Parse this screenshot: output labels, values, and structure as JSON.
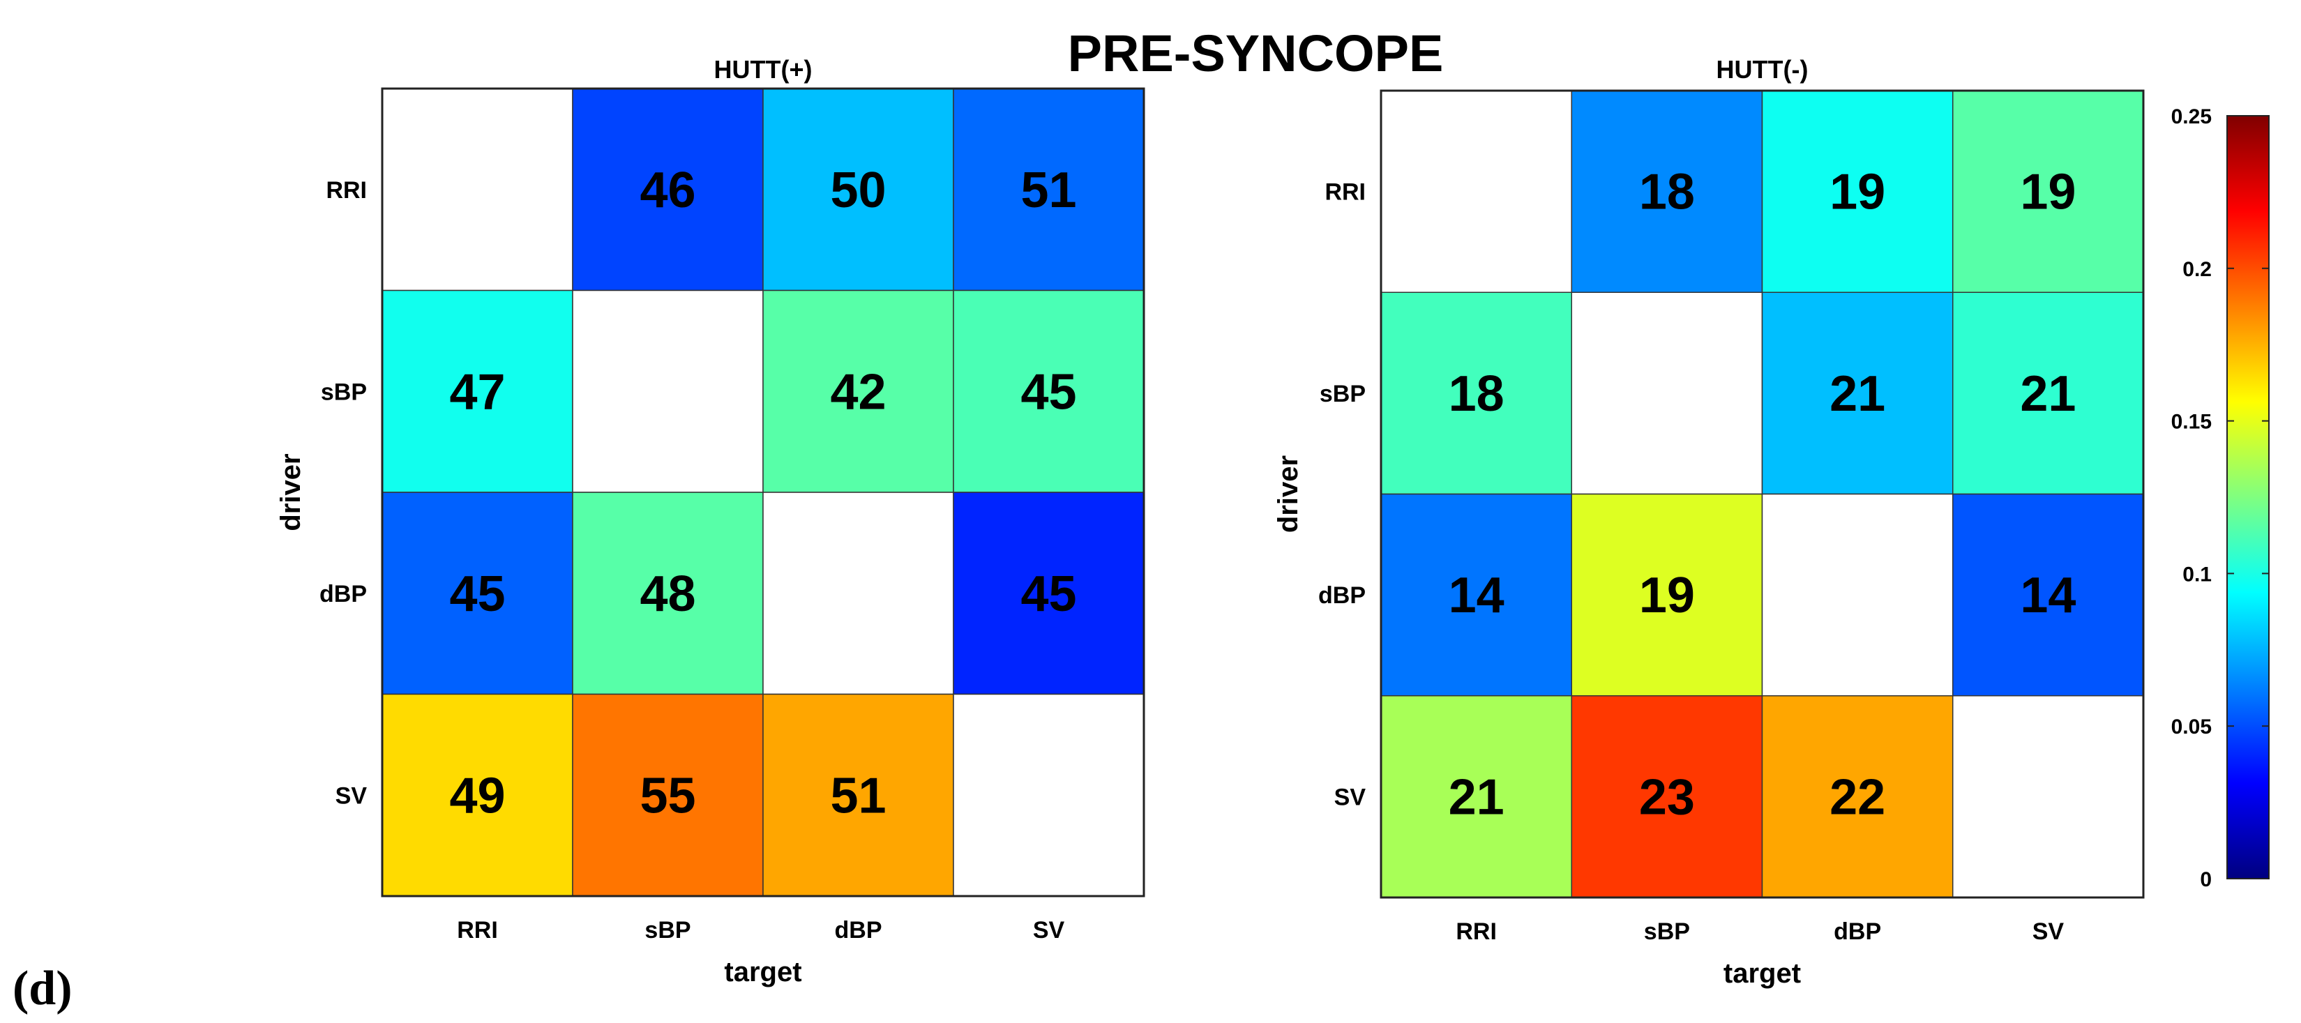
{
  "figure": {
    "main_title": "PRE-SYNCOPE",
    "panel_letter": "(d)"
  },
  "colorbar": {
    "colormap": "jet",
    "range": [
      0,
      0.25
    ],
    "ticks": [
      0,
      0.05,
      0.1,
      0.15,
      0.2,
      0.25
    ],
    "tick_labels": [
      "0",
      "0.05",
      "0.1",
      "0.15",
      "0.2",
      "0.25"
    ]
  },
  "chart_data": [
    {
      "type": "heatmap",
      "title": "HUTT(+)",
      "xlabel": "target",
      "ylabel": "driver",
      "x_categories": [
        "RRI",
        "sBP",
        "dBP",
        "SV"
      ],
      "y_categories": [
        "RRI",
        "sBP",
        "dBP",
        "SV"
      ],
      "clim": [
        0,
        0.25
      ],
      "colors": [
        [
          null,
          0.048,
          0.078,
          0.057
        ],
        [
          0.098,
          null,
          0.115,
          0.112
        ],
        [
          0.055,
          0.115,
          null,
          0.04
        ],
        [
          0.165,
          0.19,
          0.178,
          null
        ]
      ],
      "labels": [
        [
          null,
          "46",
          "50",
          "51"
        ],
        [
          "47",
          null,
          "42",
          "45"
        ],
        [
          "45",
          "48",
          null,
          "45"
        ],
        [
          "49",
          "55",
          "51",
          null
        ]
      ]
    },
    {
      "type": "heatmap",
      "title": "HUTT(-)",
      "xlabel": "target",
      "ylabel": "driver",
      "x_categories": [
        "RRI",
        "sBP",
        "dBP",
        "SV"
      ],
      "y_categories": [
        "RRI",
        "sBP",
        "dBP",
        "SV"
      ],
      "clim": [
        0,
        0.25
      ],
      "colors": [
        [
          null,
          0.065,
          0.097,
          0.115
        ],
        [
          0.11,
          null,
          0.078,
          0.105
        ],
        [
          0.06,
          0.148,
          null,
          0.052
        ],
        [
          0.135,
          0.205,
          0.178,
          null
        ]
      ],
      "labels": [
        [
          null,
          "18",
          "19",
          "19"
        ],
        [
          "18",
          null,
          "21",
          "21"
        ],
        [
          "14",
          "19",
          null,
          "14"
        ],
        [
          "21",
          "23",
          "22",
          null
        ]
      ]
    }
  ]
}
